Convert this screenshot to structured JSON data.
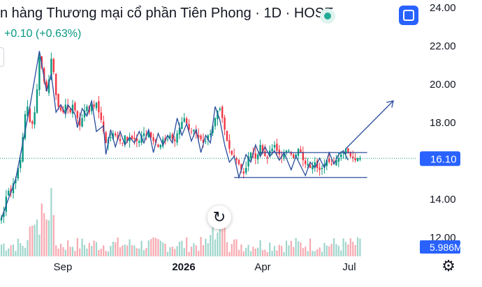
{
  "header": {
    "title": "n hàng Thương mại cổ phần Tiên Phong · 1D · HOSE",
    "change": "+0.10 (+0.63%)"
  },
  "colors": {
    "up": "#089981",
    "down": "#f23645",
    "volume_up": "#9fd6cc",
    "volume_down": "#f7a9b0",
    "drawing": "#2a4d9c",
    "last_price_bg": "#2962ff",
    "last_price_line": "#089981"
  },
  "icons": {
    "status": "status-dot-icon",
    "fullscreen": "fullscreen-icon",
    "reset": "reset-icon",
    "settings": "settings-icon"
  },
  "chart_data": {
    "type": "candlestick",
    "title": "",
    "xlabel": "",
    "ylabel": "",
    "ylim": [
      11.0,
      24.0
    ],
    "y_ticks": [
      "24.00",
      "22.00",
      "20.00",
      "18.00",
      "14.00",
      "12.00"
    ],
    "x_ticks": [
      "Sep",
      "2026",
      "Apr",
      "Jul"
    ],
    "x_tick_bold": [
      false,
      true,
      false,
      false
    ],
    "last_price": {
      "value": 16.1,
      "label": "16.10"
    },
    "volume_label": "5.986M",
    "series": [
      {
        "name": "close",
        "values": [
          13.0,
          13.3,
          14.1,
          14.4,
          14.3,
          14.8,
          15.0,
          15.6,
          16.0,
          17.2,
          18.4,
          18.8,
          18.0,
          17.9,
          18.5,
          19.7,
          21.4,
          20.8,
          20.1,
          19.6,
          20.2,
          21.3,
          20.6,
          19.4,
          18.8,
          18.6,
          18.5,
          18.9,
          18.7,
          18.5,
          18.9,
          18.6,
          18.2,
          17.8,
          18.2,
          18.6,
          18.8,
          18.5,
          18.9,
          18.8,
          19.0,
          18.5,
          18.1,
          17.5,
          16.9,
          17.1,
          17.2,
          17.4,
          17.3,
          17.1,
          17.0,
          16.9,
          17.3,
          17.0,
          17.2,
          17.1,
          17.1,
          17.0,
          17.0,
          17.3,
          17.4,
          17.3,
          17.5,
          17.2,
          17.0,
          16.9,
          16.7,
          16.8,
          17.1,
          17.0,
          17.1,
          17.3,
          17.1,
          17.0,
          17.4,
          17.7,
          18.0,
          18.2,
          17.9,
          17.6,
          17.5,
          17.6,
          17.4,
          17.2,
          17.1,
          16.9,
          17.0,
          17.3,
          17.4,
          17.8,
          18.2,
          18.6,
          18.7,
          18.2,
          17.6,
          17.0,
          16.6,
          16.3,
          16.2,
          16.0,
          15.8,
          15.5,
          15.3,
          15.6,
          16.2,
          16.4,
          16.3,
          16.1,
          16.3,
          16.8,
          16.4,
          16.2,
          16.1,
          16.5,
          16.6,
          16.8,
          16.5,
          16.3,
          16.2,
          16.4,
          16.5,
          16.5,
          16.3,
          16.1,
          16.3,
          16.6,
          16.4,
          16.0,
          15.8,
          15.8,
          15.6,
          15.7,
          15.9,
          15.6,
          15.5,
          15.6,
          15.8,
          16.0,
          15.9,
          15.8,
          15.8,
          16.0,
          16.1,
          16.3,
          16.4,
          16.6,
          16.4,
          16.2,
          16.1,
          16.0,
          16.1,
          16.1
        ]
      }
    ],
    "drawings": [
      {
        "type": "polyline",
        "points": [
          [
            0,
            12.95
          ],
          [
            3,
            14.0
          ],
          [
            6,
            15.0
          ],
          [
            9,
            16.9
          ],
          [
            12,
            18.8
          ],
          [
            16,
            21.7
          ],
          [
            19,
            19.6
          ],
          [
            21,
            20.5
          ],
          [
            23,
            18.5
          ],
          [
            25,
            18.9
          ],
          [
            27,
            18.4
          ],
          [
            28,
            18.9
          ],
          [
            31,
            18.4
          ],
          [
            32,
            17.7
          ],
          [
            34,
            18.7
          ],
          [
            36,
            18.3
          ],
          [
            38,
            19.1
          ],
          [
            40,
            17.5
          ],
          [
            43,
            17.8
          ],
          [
            44,
            16.3
          ],
          [
            46,
            17.6
          ],
          [
            48,
            16.7
          ],
          [
            50,
            17.5
          ],
          [
            52,
            16.8
          ],
          [
            54,
            17.2
          ],
          [
            56,
            16.9
          ],
          [
            58,
            17.5
          ],
          [
            60,
            16.9
          ],
          [
            62,
            17.6
          ],
          [
            64,
            16.4
          ],
          [
            66,
            17.4
          ],
          [
            68,
            16.8
          ],
          [
            70,
            17.3
          ],
          [
            72,
            16.9
          ],
          [
            74,
            18.2
          ],
          [
            76,
            17.3
          ],
          [
            78,
            17.9
          ],
          [
            80,
            17.0
          ],
          [
            82,
            17.6
          ],
          [
            84,
            16.4
          ],
          [
            86,
            17.3
          ],
          [
            88,
            16.9
          ],
          [
            90,
            18.8
          ],
          [
            92,
            18.1
          ],
          [
            94,
            16.8
          ],
          [
            96,
            15.9
          ],
          [
            98,
            16.2
          ],
          [
            100,
            15.1
          ],
          [
            103,
            16.3
          ],
          [
            105,
            15.9
          ],
          [
            107,
            16.8
          ],
          [
            109,
            16.2
          ],
          [
            111,
            16.7
          ],
          [
            113,
            16.2
          ],
          [
            115,
            16.5
          ],
          [
            117,
            16.0
          ],
          [
            119,
            16.4
          ],
          [
            122,
            15.5
          ],
          [
            124,
            16.2
          ],
          [
            126,
            15.7
          ],
          [
            128,
            15.2
          ],
          [
            130,
            15.9
          ],
          [
            132,
            15.6
          ],
          [
            134,
            16.1
          ],
          [
            136,
            15.6
          ],
          [
            138,
            16.4
          ],
          [
            140,
            15.8
          ],
          [
            142,
            16.3
          ],
          [
            144,
            16.5
          ],
          [
            146,
            16.0
          ]
        ]
      },
      {
        "type": "hline",
        "from": 108,
        "to": 154,
        "y": 16.4
      },
      {
        "type": "hline",
        "from": 98,
        "to": 154,
        "y": 15.1
      },
      {
        "type": "arrow",
        "from": [
          145,
          16.6
        ],
        "to": [
          165,
          19.1
        ]
      }
    ]
  }
}
